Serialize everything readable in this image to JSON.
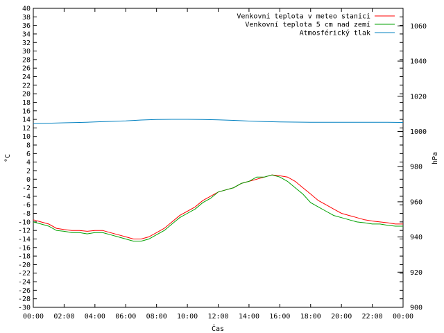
{
  "chart_data": {
    "type": "line",
    "xlabel": "Čas",
    "ylabel_left": "°C",
    "ylabel_right": "hPa",
    "x_ticks": [
      "00:00",
      "02:00",
      "04:00",
      "06:00",
      "08:00",
      "10:00",
      "12:00",
      "14:00",
      "16:00",
      "18:00",
      "20:00",
      "22:00",
      "00:00"
    ],
    "xlim_hours": [
      0,
      24
    ],
    "ylim_left": [
      -30,
      40
    ],
    "ylim_right": [
      900,
      1070
    ],
    "y_left_ticks": [
      -30,
      -28,
      -26,
      -24,
      -22,
      -20,
      -18,
      -16,
      -14,
      -12,
      -10,
      -8,
      -6,
      -4,
      -2,
      0,
      2,
      4,
      6,
      8,
      10,
      12,
      14,
      16,
      18,
      20,
      22,
      24,
      26,
      28,
      30,
      32,
      34,
      36,
      38,
      40
    ],
    "y_right_ticks": [
      900,
      920,
      940,
      960,
      980,
      1000,
      1020,
      1040,
      1060
    ],
    "grid": false,
    "legend_position": "top-right",
    "series": [
      {
        "name": "Venkovní teplota v meteo stanici",
        "color": "#ff0000",
        "axis": "left",
        "x": [
          0,
          0.5,
          1,
          1.5,
          2,
          2.5,
          3,
          3.5,
          4,
          4.5,
          5,
          5.5,
          6,
          6.5,
          7,
          7.5,
          8,
          8.5,
          9,
          9.5,
          10,
          10.5,
          11,
          11.5,
          12,
          12.5,
          13,
          13.5,
          14,
          14.5,
          15,
          15.5,
          16,
          16.5,
          17,
          17.5,
          18,
          18.5,
          19,
          19.5,
          20,
          20.5,
          21,
          21.5,
          22,
          22.5,
          23,
          23.5,
          24
        ],
        "y": [
          -9.5,
          -10,
          -10.5,
          -11.5,
          -11.8,
          -12,
          -12,
          -12.2,
          -12,
          -12,
          -12.5,
          -13,
          -13.5,
          -14,
          -14,
          -13.5,
          -12.5,
          -11.5,
          -10,
          -8.5,
          -7.5,
          -6.5,
          -5,
          -4,
          -3,
          -2.5,
          -2,
          -1,
          -0.5,
          0,
          0.5,
          1,
          0.8,
          0.5,
          -0.5,
          -2,
          -3.5,
          -5,
          -6,
          -7,
          -8,
          -8.5,
          -9,
          -9.5,
          -9.8,
          -10,
          -10.2,
          -10.5,
          -10.5
        ]
      },
      {
        "name": "Venkovní teplota 5 cm nad zemí",
        "color": "#00a000",
        "axis": "left",
        "x": [
          0,
          0.5,
          1,
          1.5,
          2,
          2.5,
          3,
          3.5,
          4,
          4.5,
          5,
          5.5,
          6,
          6.5,
          7,
          7.5,
          8,
          8.5,
          9,
          9.5,
          10,
          10.5,
          11,
          11.5,
          12,
          12.5,
          13,
          13.5,
          14,
          14.5,
          15,
          15.5,
          16,
          16.5,
          17,
          17.5,
          18,
          18.5,
          19,
          19.5,
          20,
          20.5,
          21,
          21.5,
          22,
          22.5,
          23,
          23.5,
          24
        ],
        "y": [
          -10,
          -10.5,
          -11,
          -12,
          -12.2,
          -12.5,
          -12.5,
          -12.8,
          -12.5,
          -12.5,
          -13,
          -13.5,
          -14,
          -14.5,
          -14.5,
          -14,
          -13,
          -12,
          -10.5,
          -9,
          -8,
          -7,
          -5.5,
          -4.5,
          -3,
          -2.5,
          -2,
          -1,
          -0.5,
          0.5,
          0.5,
          1,
          0.5,
          -0.5,
          -2,
          -3.5,
          -5.5,
          -6.5,
          -7.5,
          -8.5,
          -9,
          -9.5,
          -10,
          -10.2,
          -10.5,
          -10.5,
          -10.8,
          -11,
          -11
        ]
      },
      {
        "name": "Atmosférický tlak",
        "color": "#0080c0",
        "axis": "right",
        "x": [
          0,
          1,
          2,
          3,
          4,
          5,
          6,
          7,
          8,
          9,
          10,
          11,
          12,
          13,
          14,
          15,
          16,
          17,
          18,
          19,
          20,
          21,
          22,
          23,
          24
        ],
        "y": [
          1004.5,
          1004.7,
          1004.9,
          1005.1,
          1005.4,
          1005.7,
          1006,
          1006.5,
          1006.8,
          1006.9,
          1006.9,
          1006.8,
          1006.6,
          1006.3,
          1005.9,
          1005.6,
          1005.4,
          1005.3,
          1005.2,
          1005.2,
          1005.2,
          1005.2,
          1005.2,
          1005.2,
          1005.1
        ]
      }
    ]
  }
}
